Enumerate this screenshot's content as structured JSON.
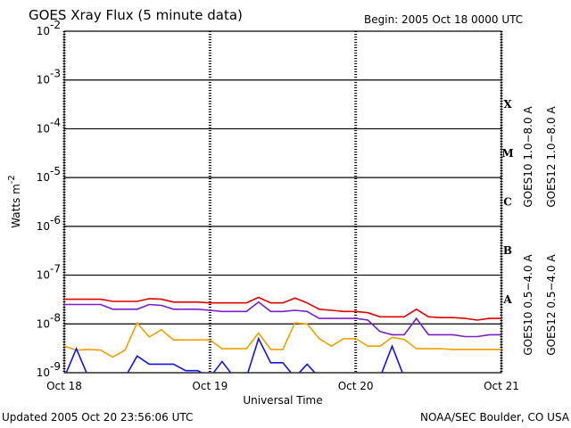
{
  "chart_data": {
    "type": "line",
    "title": "GOES Xray Flux (5 minute data)",
    "subtitle": "Begin:  2005 Oct 18 0000 UTC",
    "x_label": "Universal Time",
    "y_label": "Watts m",
    "y_label_sup": "-2",
    "updated": "Updated 2005 Oct 20 23:56:06 UTC",
    "credit": "NOAA/SEC Boulder, CO USA",
    "log_y": true,
    "grid": true,
    "xlim": [
      0,
      72
    ],
    "xticks": [
      {
        "value": 0,
        "label": "Oct 18"
      },
      {
        "value": 24,
        "label": "Oct 19"
      },
      {
        "value": 48,
        "label": "Oct 20"
      },
      {
        "value": 72,
        "label": "Oct 21"
      }
    ],
    "ylim": [
      1e-09,
      0.01
    ],
    "yticks": [
      {
        "value": 1e-09,
        "label": "10",
        "sup": "-9"
      },
      {
        "value": 1e-08,
        "label": "10",
        "sup": "-8"
      },
      {
        "value": 1e-07,
        "label": "10",
        "sup": "-7"
      },
      {
        "value": 1e-06,
        "label": "10",
        "sup": "-6"
      },
      {
        "value": 1e-05,
        "label": "10",
        "sup": "-5"
      },
      {
        "value": 0.0001,
        "label": "10",
        "sup": "-4"
      },
      {
        "value": 0.001,
        "label": "10",
        "sup": "-3"
      },
      {
        "value": 0.01,
        "label": "10",
        "sup": "-2"
      }
    ],
    "flare_classes": [
      {
        "label": "A",
        "value": 1e-08
      },
      {
        "label": "B",
        "value": 1e-07
      },
      {
        "label": "C",
        "value": 1e-06
      },
      {
        "label": "M",
        "value": 1e-05
      },
      {
        "label": "X",
        "value": 0.0001
      }
    ],
    "x": [
      0,
      2,
      4,
      6,
      8,
      10,
      12,
      14,
      16,
      18,
      20,
      22,
      24,
      26,
      28,
      30,
      32,
      34,
      36,
      38,
      40,
      42,
      44,
      46,
      48,
      50,
      52,
      54,
      56,
      58,
      60,
      62,
      64,
      66,
      68,
      70,
      72
    ],
    "series": [
      {
        "name": "GOES10 1.0−8.0 A",
        "color": "#7a1fc8",
        "values": [
          2.5e-08,
          2.5e-08,
          2.5e-08,
          2.5e-08,
          2e-08,
          2e-08,
          2e-08,
          2.5e-08,
          2.4e-08,
          2e-08,
          2e-08,
          2e-08,
          1.9e-08,
          1.8e-08,
          1.8e-08,
          1.8e-08,
          2.8e-08,
          1.8e-08,
          1.8e-08,
          1.9e-08,
          1.8e-08,
          1.3e-08,
          1.3e-08,
          1.3e-08,
          1.3e-08,
          1.2e-08,
          7e-09,
          6e-09,
          6e-09,
          1.3e-08,
          6e-09,
          6e-09,
          6e-09,
          5.5e-09,
          5.5e-09,
          6e-09,
          6e-09
        ]
      },
      {
        "name": "GOES12 1.0−8.0 A",
        "color": "#e00000",
        "values": [
          3.2e-08,
          3.2e-08,
          3.2e-08,
          3.2e-08,
          2.9e-08,
          2.9e-08,
          2.9e-08,
          3.3e-08,
          3.2e-08,
          2.8e-08,
          2.8e-08,
          2.8e-08,
          2.7e-08,
          2.7e-08,
          2.7e-08,
          2.7e-08,
          3.5e-08,
          2.7e-08,
          2.7e-08,
          3.4e-08,
          2.7e-08,
          2e-08,
          1.9e-08,
          1.8e-08,
          1.8e-08,
          1.7e-08,
          1.4e-08,
          1.4e-08,
          1.4e-08,
          2e-08,
          1.4e-08,
          1.35e-08,
          1.35e-08,
          1.3e-08,
          1.2e-08,
          1.3e-08,
          1.3e-08
        ]
      },
      {
        "name": "GOES10 0.5−4.0 A",
        "color": "#f0a000",
        "values": [
          3.5e-09,
          2.9e-09,
          3e-09,
          2.9e-09,
          2.1e-09,
          2.9e-09,
          1.05e-08,
          5.4e-09,
          7.6e-09,
          4.7e-09,
          4.7e-09,
          4.7e-09,
          4.7e-09,
          3.1e-09,
          3.1e-09,
          3.1e-09,
          6.5e-09,
          3e-09,
          3e-09,
          1.05e-08,
          1e-08,
          5e-09,
          3.5e-09,
          5e-09,
          5e-09,
          3.5e-09,
          3.5e-09,
          5.3e-09,
          4.8e-09,
          3.1e-09,
          3.1e-09,
          3.1e-09,
          3e-09,
          3e-09,
          3e-09,
          3e-09,
          3e-09
        ]
      },
      {
        "name": "GOES12 0.5−4.0 A",
        "color": "#1414e0",
        "values": [
          8e-10,
          3.1e-09,
          8e-10,
          8e-10,
          8e-10,
          8e-10,
          2.2e-09,
          1.5e-09,
          1.5e-09,
          1.5e-09,
          1.1e-09,
          1.1e-09,
          8e-10,
          1.7e-09,
          8e-10,
          8e-10,
          5e-09,
          1.6e-09,
          1.6e-09,
          8e-10,
          1.5e-09,
          8e-10,
          8e-10,
          8e-10,
          8e-10,
          8e-10,
          8e-10,
          3.5e-09,
          8e-10,
          8e-10,
          8e-10,
          8e-10,
          8e-10,
          8e-10,
          8e-10,
          8e-10,
          8e-10
        ]
      }
    ]
  }
}
